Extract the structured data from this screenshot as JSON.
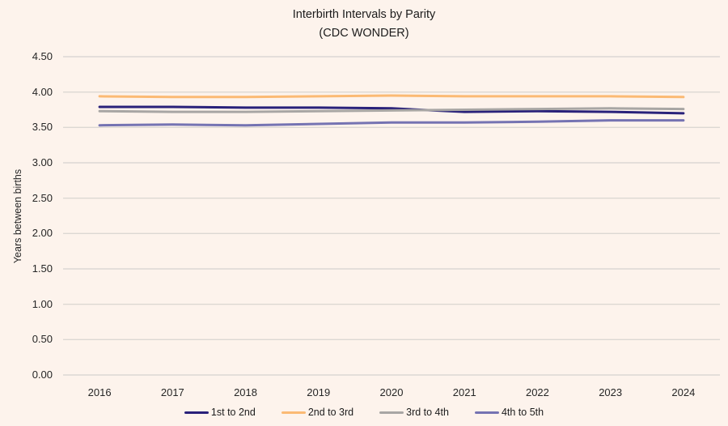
{
  "colors": {
    "background": "#fdf3ec",
    "gridline": "#dcd8d3",
    "text": "#1c1c1c",
    "tick_text": "#262626"
  },
  "chart_data": {
    "type": "line",
    "title": "Interbirth Intervals by Parity",
    "subtitle": "(CDC WONDER)",
    "ylabel": "Years between births",
    "xlabel": "",
    "x": [
      2016,
      2017,
      2018,
      2019,
      2020,
      2021,
      2022,
      2023,
      2024
    ],
    "ylim": [
      0,
      4.5
    ],
    "yticks": [
      "0.00",
      "0.50",
      "1.00",
      "1.50",
      "2.00",
      "2.50",
      "3.00",
      "3.50",
      "4.00",
      "4.50"
    ],
    "grid": true,
    "legend_position": "bottom",
    "x_outer_padding": "half-band",
    "series": [
      {
        "name": "1st to 2nd",
        "color": "#29217a",
        "values": [
          3.79,
          3.79,
          3.78,
          3.78,
          3.77,
          3.72,
          3.73,
          3.72,
          3.7
        ]
      },
      {
        "name": "2nd to 3rd",
        "color": "#fbba74",
        "values": [
          3.94,
          3.93,
          3.93,
          3.94,
          3.95,
          3.94,
          3.94,
          3.94,
          3.93
        ]
      },
      {
        "name": "3rd to 4th",
        "color": "#a8a6a4",
        "values": [
          3.73,
          3.72,
          3.72,
          3.73,
          3.74,
          3.75,
          3.76,
          3.77,
          3.76
        ]
      },
      {
        "name": "4th to 5th",
        "color": "#7573b2",
        "values": [
          3.53,
          3.54,
          3.53,
          3.55,
          3.57,
          3.57,
          3.58,
          3.6,
          3.6
        ]
      }
    ]
  }
}
